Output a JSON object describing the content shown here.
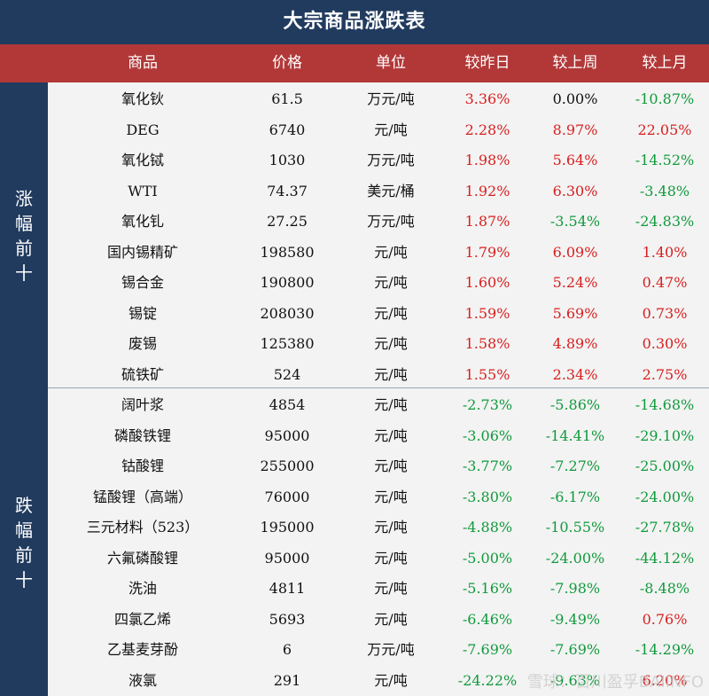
{
  "title": "大宗商品涨跌表",
  "headers": [
    "商品",
    "价格",
    "单位",
    "较昨日",
    "较上周",
    "较上月"
  ],
  "sections": [
    {
      "label": "涨幅前十",
      "rows": [
        {
          "name": "氧化钬",
          "price": "61.5",
          "unit": "万元/吨",
          "d": "3.36%",
          "w": "0.00%",
          "m": "-10.87%",
          "dc": "red",
          "wc": "black",
          "mc": "green"
        },
        {
          "name": "DEG",
          "price": "6740",
          "unit": "元/吨",
          "d": "2.28%",
          "w": "8.97%",
          "m": "22.05%",
          "dc": "red",
          "wc": "red",
          "mc": "red"
        },
        {
          "name": "氧化铽",
          "price": "1030",
          "unit": "万元/吨",
          "d": "1.98%",
          "w": "5.64%",
          "m": "-14.52%",
          "dc": "red",
          "wc": "red",
          "mc": "green"
        },
        {
          "name": "WTI",
          "price": "74.37",
          "unit": "美元/桶",
          "d": "1.92%",
          "w": "6.30%",
          "m": "-3.48%",
          "dc": "red",
          "wc": "red",
          "mc": "green"
        },
        {
          "name": "氧化钆",
          "price": "27.25",
          "unit": "万元/吨",
          "d": "1.87%",
          "w": "-3.54%",
          "m": "-24.83%",
          "dc": "red",
          "wc": "green",
          "mc": "green"
        },
        {
          "name": "国内锡精矿",
          "price": "198580",
          "unit": "元/吨",
          "d": "1.79%",
          "w": "6.09%",
          "m": "1.40%",
          "dc": "red",
          "wc": "red",
          "mc": "red"
        },
        {
          "name": "锡合金",
          "price": "190800",
          "unit": "元/吨",
          "d": "1.60%",
          "w": "5.24%",
          "m": "0.47%",
          "dc": "red",
          "wc": "red",
          "mc": "red"
        },
        {
          "name": "锡锭",
          "price": "208030",
          "unit": "元/吨",
          "d": "1.59%",
          "w": "5.69%",
          "m": "0.73%",
          "dc": "red",
          "wc": "red",
          "mc": "red"
        },
        {
          "name": "废锡",
          "price": "125380",
          "unit": "元/吨",
          "d": "1.58%",
          "w": "4.89%",
          "m": "0.30%",
          "dc": "red",
          "wc": "red",
          "mc": "red"
        },
        {
          "name": "硫铁矿",
          "price": "524",
          "unit": "元/吨",
          "d": "1.55%",
          "w": "2.34%",
          "m": "2.75%",
          "dc": "red",
          "wc": "red",
          "mc": "red"
        }
      ]
    },
    {
      "label": "跌幅前十",
      "rows": [
        {
          "name": "阔叶浆",
          "price": "4854",
          "unit": "元/吨",
          "d": "-2.73%",
          "w": "-5.86%",
          "m": "-14.68%",
          "dc": "green",
          "wc": "green",
          "mc": "green"
        },
        {
          "name": "磷酸铁锂",
          "price": "95000",
          "unit": "元/吨",
          "d": "-3.06%",
          "w": "-14.41%",
          "m": "-29.10%",
          "dc": "green",
          "wc": "green",
          "mc": "green"
        },
        {
          "name": "钴酸锂",
          "price": "255000",
          "unit": "元/吨",
          "d": "-3.77%",
          "w": "-7.27%",
          "m": "-25.00%",
          "dc": "green",
          "wc": "green",
          "mc": "green"
        },
        {
          "name": "锰酸锂（高端）",
          "price": "76000",
          "unit": "元/吨",
          "d": "-3.80%",
          "w": "-6.17%",
          "m": "-24.00%",
          "dc": "green",
          "wc": "green",
          "mc": "green"
        },
        {
          "name": "三元材料（523）",
          "price": "195000",
          "unit": "元/吨",
          "d": "-4.88%",
          "w": "-10.55%",
          "m": "-27.78%",
          "dc": "green",
          "wc": "green",
          "mc": "green"
        },
        {
          "name": "六氟磷酸锂",
          "price": "95000",
          "unit": "元/吨",
          "d": "-5.00%",
          "w": "-24.00%",
          "m": "-44.12%",
          "dc": "green",
          "wc": "green",
          "mc": "green"
        },
        {
          "name": "洗油",
          "price": "4811",
          "unit": "元/吨",
          "d": "-5.16%",
          "w": "-7.98%",
          "m": "-8.48%",
          "dc": "green",
          "wc": "green",
          "mc": "green"
        },
        {
          "name": "四氯乙烯",
          "price": "5693",
          "unit": "元/吨",
          "d": "-6.46%",
          "w": "-9.49%",
          "m": "0.76%",
          "dc": "green",
          "wc": "green",
          "mc": "red"
        },
        {
          "name": "乙基麦芽酚",
          "price": "6",
          "unit": "万元/吨",
          "d": "-7.69%",
          "w": "-7.69%",
          "m": "-14.29%",
          "dc": "green",
          "wc": "green",
          "mc": "green"
        },
        {
          "name": "液氯",
          "price": "291",
          "unit": "元/吨",
          "d": "-24.22%",
          "w": "-9.63%",
          "m": "6.20%",
          "dc": "green",
          "wc": "green",
          "mc": "red"
        }
      ]
    }
  ],
  "watermark": "雪球：百川盈孚BAIINFO"
}
